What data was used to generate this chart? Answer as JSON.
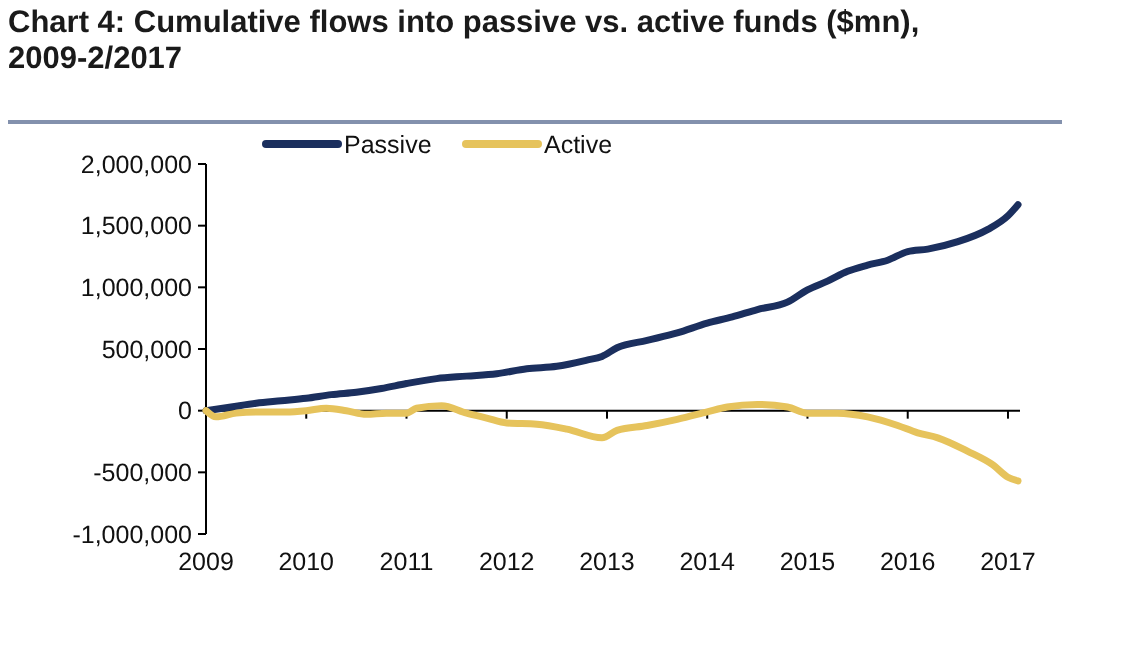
{
  "chart_data": {
    "type": "line",
    "title": "Chart 4: Cumulative flows into passive vs. active funds ($mn), 2009-2/2017",
    "xlim": [
      2009,
      2017.12
    ],
    "xticks": [
      2009,
      2010,
      2011,
      2012,
      2013,
      2014,
      2015,
      2016,
      2017
    ],
    "ylim": [
      -1000000,
      2000000
    ],
    "yticks": [
      {
        "value": -1000000,
        "label": "-1,000,000"
      },
      {
        "value": -500000,
        "label": "-500,000"
      },
      0,
      {
        "value": 500000,
        "label": "500,000"
      },
      {
        "value": 1000000,
        "label": "1,000,000"
      },
      {
        "value": 1500000,
        "label": "1,500,000"
      },
      {
        "value": 2000000,
        "label": "2,000,000"
      }
    ],
    "legend": "top left",
    "marker": "none",
    "line_style": "solid",
    "series": [
      {
        "name": "Passive",
        "color": "#1b2f5e",
        "x": [
          2009,
          2009.25,
          2009.5,
          2009.75,
          2010,
          2010.25,
          2010.5,
          2010.75,
          2011,
          2011.3,
          2011.6,
          2011.9,
          2012.2,
          2012.5,
          2012.8,
          2012.95,
          2013.1,
          2013.4,
          2013.7,
          2014,
          2014.25,
          2014.5,
          2014.8,
          2015,
          2015.2,
          2015.4,
          2015.6,
          2015.8,
          2016,
          2016.2,
          2016.5,
          2016.8,
          2017,
          2017.1
        ],
        "values": [
          0,
          30000,
          60000,
          80000,
          100000,
          130000,
          150000,
          180000,
          220000,
          260000,
          280000,
          300000,
          340000,
          360000,
          410000,
          440000,
          510000,
          570000,
          630000,
          710000,
          760000,
          820000,
          880000,
          980000,
          1050000,
          1130000,
          1180000,
          1220000,
          1290000,
          1310000,
          1370000,
          1470000,
          1580000,
          1670000
        ]
      },
      {
        "name": "Active",
        "color": "#e6c35c",
        "x": [
          2009,
          2009.1,
          2009.3,
          2009.5,
          2009.8,
          2010,
          2010.2,
          2010.4,
          2010.6,
          2010.8,
          2011,
          2011.1,
          2011.35,
          2011.6,
          2011.8,
          2012,
          2012.3,
          2012.6,
          2012.95,
          2013.1,
          2013.4,
          2013.7,
          2014,
          2014.2,
          2014.5,
          2014.8,
          2015,
          2015.3,
          2015.6,
          2015.9,
          2016.1,
          2016.3,
          2016.6,
          2016.85,
          2017,
          2017.1
        ],
        "values": [
          0,
          -50000,
          -20000,
          -10000,
          -10000,
          0,
          20000,
          0,
          -30000,
          -20000,
          -20000,
          20000,
          40000,
          -20000,
          -60000,
          -100000,
          -110000,
          -150000,
          -220000,
          -160000,
          -120000,
          -70000,
          -10000,
          30000,
          50000,
          30000,
          -20000,
          -20000,
          -50000,
          -120000,
          -180000,
          -220000,
          -330000,
          -440000,
          -540000,
          -570000
        ]
      }
    ]
  }
}
